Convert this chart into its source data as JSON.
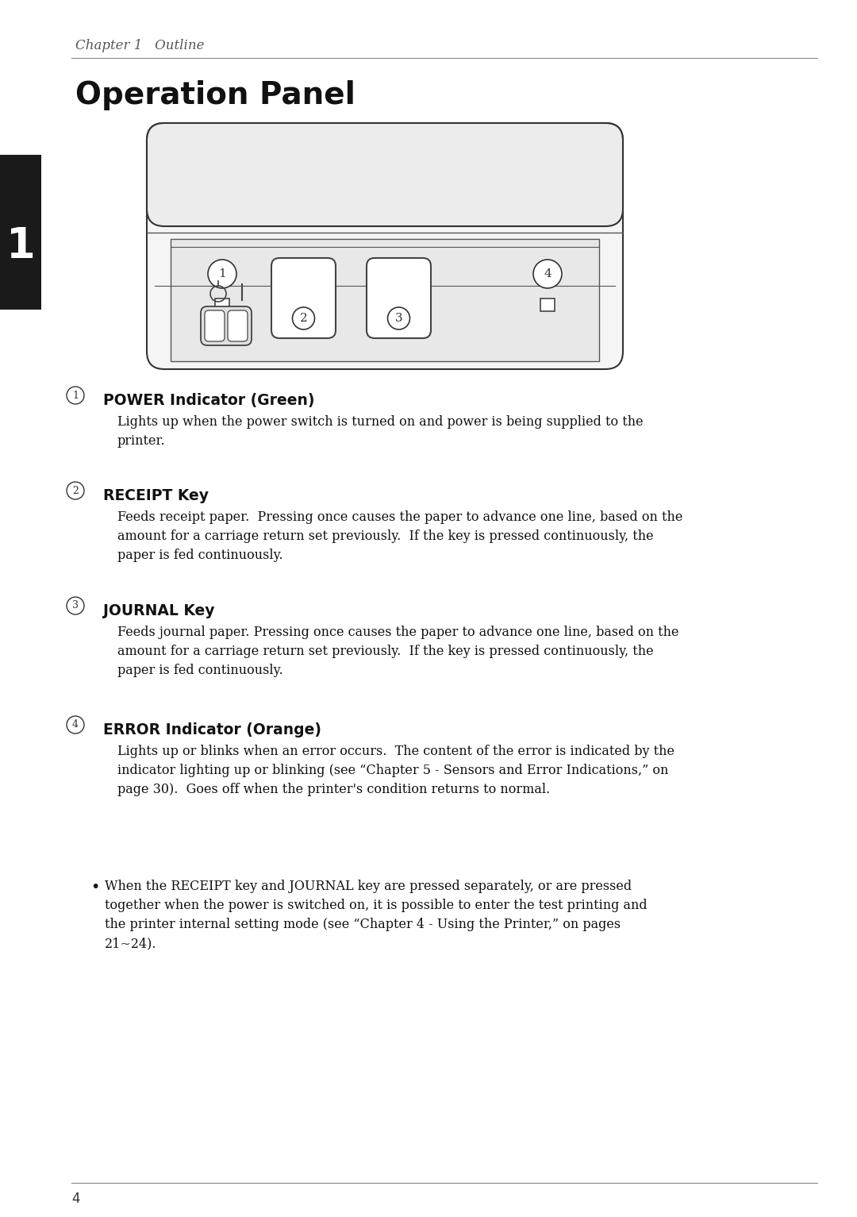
{
  "chapter_label": "Chapter 1   Outline",
  "section_number": "1",
  "section_title": "Operation Panel",
  "bg_color": "#ffffff",
  "text_color": "#000000",
  "sidebar_color": "#1a1a1a",
  "items": [
    {
      "number": "1",
      "title": "POWER Indicator (Green)",
      "body": "Lights up when the power switch is turned on and power is being supplied to the\nprinter."
    },
    {
      "number": "2",
      "title": "RECEIPT Key",
      "body": "Feeds receipt paper.  Pressing once causes the paper to advance one line, based on the\namount for a carriage return set previously.  If the key is pressed continuously, the\npaper is fed continuously."
    },
    {
      "number": "3",
      "title": "JOURNAL Key",
      "body": "Feeds journal paper. Pressing once causes the paper to advance one line, based on the\namount for a carriage return set previously.  If the key is pressed continuously, the\npaper is fed continuously."
    },
    {
      "number": "4",
      "title": "ERROR Indicator (Orange)",
      "body": "Lights up or blinks when an error occurs.  The content of the error is indicated by the\nindicator lighting up or blinking (see “Chapter 5 - Sensors and Error Indications,” on\npage 30).  Goes off when the printer's condition returns to normal."
    }
  ],
  "bullet_text": "When the RECEIPT key and JOURNAL key are pressed separately, or are pressed\ntogether when the power is switched on, it is possible to enter the test printing and\nthe printer internal setting mode (see “Chapter 4 - Using the Printer,” on pages\n21~24).",
  "page_number": "4"
}
